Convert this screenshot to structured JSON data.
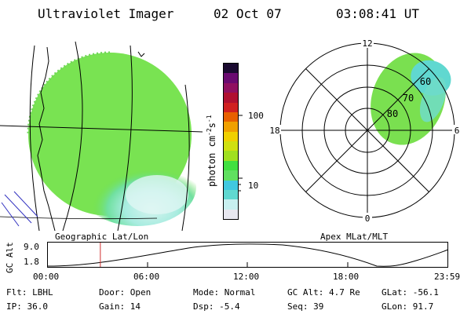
{
  "header": {
    "title": "Ultraviolet Imager",
    "date": "02 Oct 07",
    "time": "03:08:41 UT"
  },
  "colorbar": {
    "label": "photon cm^-2 s^-1",
    "label_main": "photon cm",
    "label_exp1": "-2",
    "label_s": "s",
    "label_exp2": "-1",
    "ticks": [
      "100",
      "10"
    ],
    "tick_values": [
      100,
      10
    ],
    "colors": [
      "#e8e8f0",
      "#c8f0f0",
      "#60d8d0",
      "#40c8e0",
      "#60e060",
      "#40e040",
      "#a0e020",
      "#d0e010",
      "#f0d000",
      "#f0a000",
      "#e86000",
      "#d02020",
      "#b01030",
      "#901060",
      "#6a0a70",
      "#1a0a30"
    ]
  },
  "left_panel": {
    "caption": "Geographic Lat/Lon"
  },
  "right_panel": {
    "caption": "Apex MLat/MLT",
    "mlt_labels": {
      "top": "12",
      "left": "18",
      "right": "6",
      "bottom": "0"
    },
    "mlat_labels": [
      "60",
      "70",
      "80"
    ]
  },
  "altitude_plot": {
    "ylabel": "GC Alt",
    "y_ticks": [
      "9.0",
      "1.8"
    ],
    "x_ticks": [
      "00:00",
      "06:00",
      "12:00",
      "18:00",
      "23:59"
    ],
    "current_time_hours": 3.145
  },
  "info": {
    "flt": "Flt: LBHL",
    "door": "Door: Open",
    "mode": "Mode: Normal",
    "gc_alt": "GC Alt: 4.7 Re",
    "glat": "GLat: -56.1",
    "ip": "IP: 36.0",
    "gain": "Gain: 14",
    "dsp": "Dsp:   -5.4",
    "seq": "Seq: 39",
    "glon": "GLon:  91.7"
  }
}
